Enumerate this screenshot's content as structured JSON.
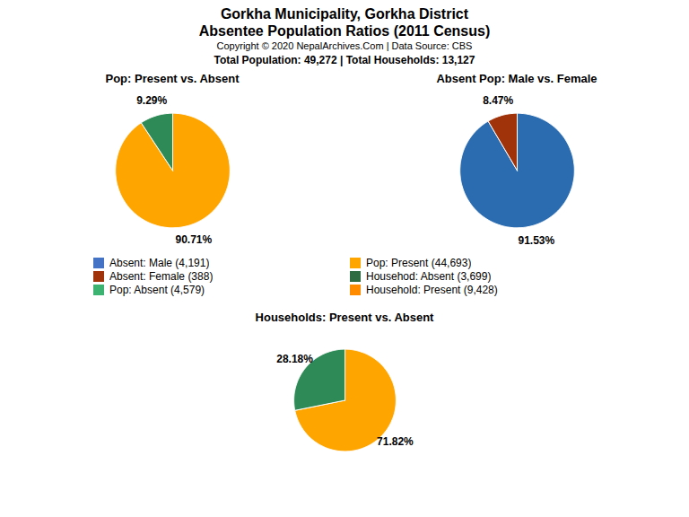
{
  "title": "Gorkha Municipality, Gorkha District",
  "subtitle": "Absentee Population Ratios (2011 Census)",
  "annotations": [
    "Copyright © 2020 NepalArchives.Com | Data Source: CBS",
    "Total Population: 49,272 | Total Households: 13,127"
  ],
  "legend_entries": [
    {
      "label": "Absent: Male (4,191)",
      "color": "#4472C4"
    },
    {
      "label": "Absent: Female (388)",
      "color": "#A0330A"
    },
    {
      "label": "Pop: Absent (4,579)",
      "color": "#3CB371"
    },
    {
      "label": "Pop: Present (44,693)",
      "color": "#FFA500"
    },
    {
      "label": "Househod: Absent (3,699)",
      "color": "#2E6B40"
    },
    {
      "label": "Household: Present (9,428)",
      "color": "#FF8C00"
    }
  ],
  "chart_data": [
    {
      "type": "pie",
      "title": "Pop: Present vs. Absent",
      "values": [
        90.71,
        9.29
      ],
      "value_labels": [
        "90.71%",
        "9.29%"
      ],
      "colors": [
        "#FFA500",
        "#2E8B57"
      ],
      "data_labels": true
    },
    {
      "type": "pie",
      "title": "Absent Pop: Male vs. Female",
      "values": [
        91.53,
        8.47
      ],
      "value_labels": [
        "91.53%",
        "8.47%"
      ],
      "colors": [
        "#2B6CB0",
        "#A0330A"
      ],
      "data_labels": true
    },
    {
      "type": "pie",
      "title": "Households: Present vs. Absent",
      "values": [
        71.82,
        28.18
      ],
      "value_labels": [
        "71.82%",
        "28.18%"
      ],
      "colors": [
        "#FFA500",
        "#2E8B57"
      ],
      "data_labels": true
    }
  ]
}
